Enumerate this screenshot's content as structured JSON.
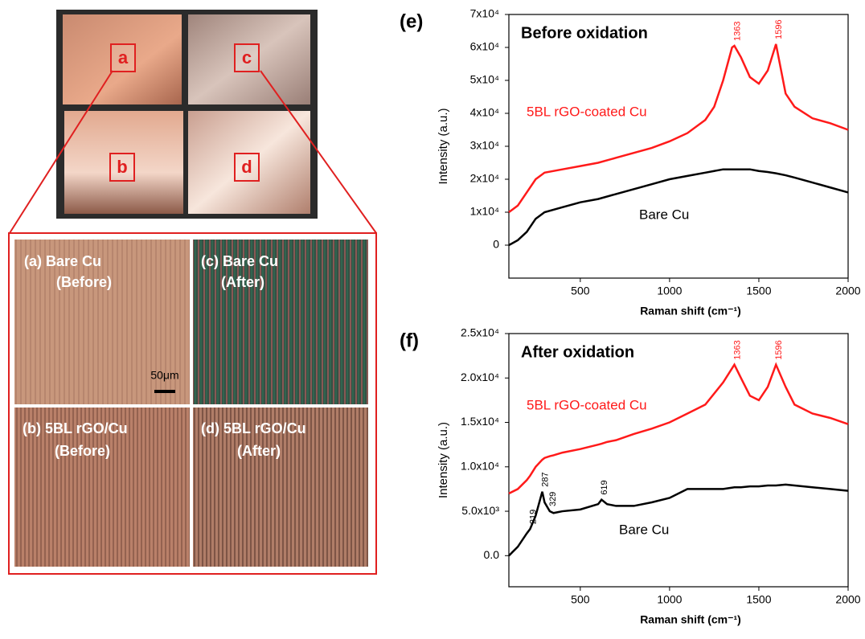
{
  "photo": {
    "labels": [
      "a",
      "c",
      "b",
      "d"
    ]
  },
  "micrographs": [
    {
      "label": "(a)  Bare Cu",
      "state": "(Before)"
    },
    {
      "label": "(c) Bare Cu",
      "state": "(After)"
    },
    {
      "label": "(b) 5BL rGO/Cu",
      "state": "(Before)"
    },
    {
      "label": "(d) 5BL rGO/Cu",
      "state": "(After)"
    }
  ],
  "scale_bar": "50μm",
  "chart_data": [
    {
      "type": "line",
      "panel": "(e)",
      "title": "Before oxidation",
      "xlabel": "Raman shift (cm⁻¹)",
      "ylabel": "Intensity (a.u.)",
      "x": [
        100,
        150,
        200,
        250,
        300,
        400,
        500,
        600,
        700,
        800,
        900,
        1000,
        1100,
        1200,
        1250,
        1300,
        1350,
        1363,
        1400,
        1450,
        1500,
        1550,
        1596,
        1650,
        1700,
        1800,
        1900,
        2000
      ],
      "xlim": [
        100,
        2000
      ],
      "xticks": [
        500,
        1000,
        1500,
        2000
      ],
      "ylim": [
        -10000,
        70000
      ],
      "yticks": [
        0,
        {
          "value": 10000,
          "label": "1x10⁴"
        },
        {
          "value": 20000,
          "label": "2x10⁴"
        },
        {
          "value": 30000,
          "label": "3x10⁴"
        },
        {
          "value": 40000,
          "label": "4x10⁴"
        },
        {
          "value": 50000,
          "label": "5x10⁴"
        },
        {
          "value": 60000,
          "label": "6x10⁴"
        },
        {
          "value": 70000,
          "label": "7x10⁴"
        }
      ],
      "series": [
        {
          "name": "5BL rGO-coated Cu",
          "color": "#ff1a1a",
          "values": [
            10000,
            12000,
            16000,
            20000,
            22000,
            23000,
            24000,
            25000,
            26500,
            28000,
            29500,
            31500,
            34000,
            38000,
            42000,
            50000,
            60000,
            60500,
            57000,
            51000,
            49000,
            53000,
            61000,
            46000,
            42000,
            38500,
            37000,
            35000
          ],
          "peaks": [
            1363,
            1596
          ]
        },
        {
          "name": "Bare Cu",
          "color": "#000000",
          "values": [
            0,
            1500,
            4000,
            8000,
            10000,
            11500,
            13000,
            14000,
            15500,
            17000,
            18500,
            20000,
            21000,
            22000,
            22500,
            23000,
            23000,
            23000,
            23000,
            23000,
            22500,
            22200,
            21800,
            21200,
            20500,
            19000,
            17500,
            16000
          ],
          "peaks": []
        }
      ]
    },
    {
      "type": "line",
      "panel": "(f)",
      "title": "After oxidation",
      "xlabel": "Raman shift (cm⁻¹)",
      "ylabel": "Intensity (a.u.)",
      "x": [
        100,
        150,
        200,
        219,
        250,
        287,
        300,
        329,
        350,
        400,
        500,
        600,
        619,
        650,
        700,
        800,
        900,
        1000,
        1100,
        1200,
        1300,
        1363,
        1400,
        1450,
        1500,
        1550,
        1596,
        1650,
        1700,
        1800,
        1900,
        2000
      ],
      "xlim": [
        100,
        2000
      ],
      "xticks": [
        500,
        1000,
        1500,
        2000
      ],
      "ylim": [
        -3500,
        25000
      ],
      "yticks": [
        {
          "value": 0,
          "label": "0.0"
        },
        {
          "value": 5000,
          "label": "5.0x10³"
        },
        {
          "value": 10000,
          "label": "1.0x10⁴"
        },
        {
          "value": 15000,
          "label": "1.5x10⁴"
        },
        {
          "value": 20000,
          "label": "2.0x10⁴"
        },
        {
          "value": 25000,
          "label": "2.5x10⁴"
        }
      ],
      "series": [
        {
          "name": "5BL rGO-coated Cu",
          "color": "#ff1a1a",
          "values": [
            7000,
            7500,
            8500,
            9000,
            10000,
            10800,
            11000,
            11200,
            11300,
            11600,
            12000,
            12500,
            12600,
            12800,
            13000,
            13700,
            14300,
            15000,
            16000,
            17000,
            19500,
            21500,
            20000,
            18000,
            17500,
            19000,
            21500,
            19000,
            17000,
            16000,
            15500,
            14800
          ],
          "peaks": [
            1363,
            1596
          ]
        },
        {
          "name": "Bare Cu",
          "color": "#000000",
          "values": [
            0,
            1000,
            2500,
            3000,
            4500,
            7200,
            6000,
            5000,
            4800,
            5000,
            5200,
            5800,
            6300,
            5800,
            5600,
            5600,
            6000,
            6500,
            7500,
            7500,
            7500,
            7700,
            7700,
            7800,
            7800,
            7900,
            7900,
            8000,
            7900,
            7700,
            7500,
            7300
          ],
          "peaks": [
            219,
            287,
            329,
            619
          ]
        }
      ]
    }
  ]
}
